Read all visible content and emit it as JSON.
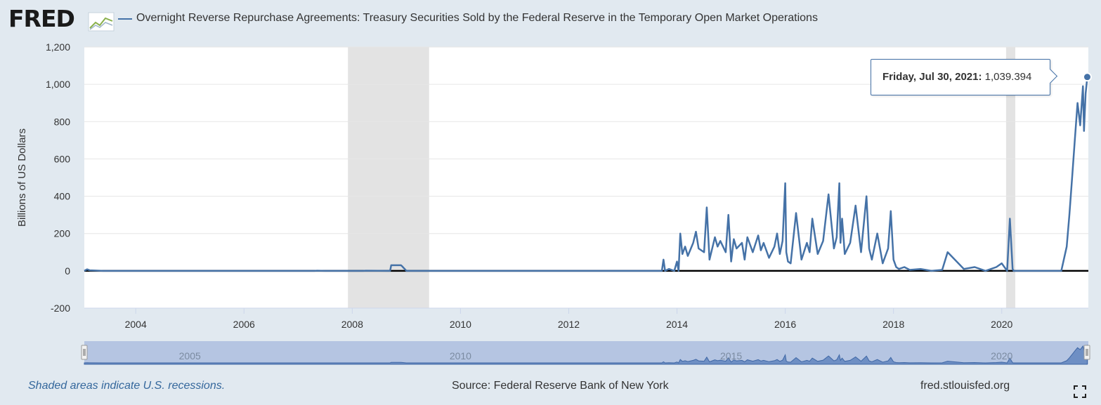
{
  "header": {
    "logo_text": "FRED",
    "series_title": "Overnight Reverse Repurchase Agreements: Treasury Securities Sold by the Federal Reserve in the Temporary Open Market Operations"
  },
  "tooltip": {
    "date": "Friday, Jul 30, 2021:",
    "value": "1,039.394"
  },
  "footer": {
    "recession_note": "Shaded areas indicate U.S. recessions.",
    "source": "Source: Federal Reserve Bank of New York",
    "site": "fred.stlouisfed.org"
  },
  "colors": {
    "series": "#4572a7",
    "recession": "#e3e3e3",
    "background": "#e1e9f0",
    "navigator": "#b5c5e2"
  },
  "icons": [
    "fullscreen-icon",
    "fred-logo-graph-icon"
  ],
  "chart_data": {
    "type": "line",
    "title": "Overnight Reverse Repurchase Agreements: Treasury Securities Sold by the Federal Reserve in the Temporary Open Market Operations",
    "xlabel": "",
    "ylabel": "Billions of US Dollars",
    "xlim": [
      2003.05,
      2021.6
    ],
    "ylim": [
      -200,
      1200
    ],
    "y_ticks": [
      -200,
      0,
      200,
      400,
      600,
      800,
      1000,
      1200
    ],
    "y_tick_labels": [
      "-200",
      "0",
      "200",
      "400",
      "600",
      "800",
      "1,000",
      "1,200"
    ],
    "x_ticks": [
      2004,
      2006,
      2008,
      2010,
      2012,
      2014,
      2016,
      2018,
      2020
    ],
    "x_tick_labels": [
      "2004",
      "2006",
      "2008",
      "2010",
      "2012",
      "2014",
      "2016",
      "2018",
      "2020"
    ],
    "grid": "horizontal",
    "recessions": [
      [
        2007.92,
        2009.42
      ],
      [
        2020.08,
        2020.25
      ]
    ],
    "navigator_labels": [
      "2005",
      "2010",
      "2015",
      "2020"
    ],
    "navigator_ticks": [
      2005,
      2010,
      2015,
      2020
    ],
    "series": [
      {
        "name": "Overnight Reverse Repurchase Agreements: Treasury Securities Sold by the Federal Reserve in the Temporary Open Market Operations",
        "x": [
          2003.05,
          2003.1,
          2003.15,
          2003.4,
          2003.5,
          2004.5,
          2005.5,
          2006.5,
          2007.3,
          2007.35,
          2007.5,
          2008.2,
          2008.25,
          2008.7,
          2008.72,
          2008.9,
          2008.92,
          2009.0,
          2009.5,
          2010.5,
          2011.5,
          2012.5,
          2013.5,
          2013.72,
          2013.75,
          2013.78,
          2013.85,
          2013.95,
          2014.0,
          2014.03,
          2014.06,
          2014.1,
          2014.15,
          2014.2,
          2014.3,
          2014.35,
          2014.4,
          2014.5,
          2014.55,
          2014.6,
          2014.7,
          2014.75,
          2014.8,
          2014.9,
          2014.95,
          2015.0,
          2015.05,
          2015.1,
          2015.2,
          2015.25,
          2015.3,
          2015.4,
          2015.5,
          2015.55,
          2015.6,
          2015.7,
          2015.8,
          2015.85,
          2015.9,
          2015.95,
          2016.0,
          2016.02,
          2016.05,
          2016.1,
          2016.2,
          2016.3,
          2016.4,
          2016.45,
          2016.5,
          2016.6,
          2016.7,
          2016.8,
          2016.9,
          2016.95,
          2017.0,
          2017.02,
          2017.05,
          2017.1,
          2017.2,
          2017.3,
          2017.4,
          2017.5,
          2017.55,
          2017.6,
          2017.7,
          2017.8,
          2017.9,
          2017.95,
          2018.0,
          2018.05,
          2018.1,
          2018.2,
          2018.3,
          2018.5,
          2018.7,
          2018.9,
          2019.0,
          2019.3,
          2019.5,
          2019.7,
          2019.9,
          2020.0,
          2020.1,
          2020.15,
          2020.2,
          2020.22,
          2020.25,
          2020.3,
          2020.5,
          2020.8,
          2021.0,
          2021.1,
          2021.2,
          2021.25,
          2021.3,
          2021.35,
          2021.4,
          2021.45,
          2021.5,
          2021.52,
          2021.55,
          2021.58
        ],
        "y": [
          0,
          8,
          3,
          0,
          0,
          0,
          0,
          0,
          0,
          1,
          0,
          0,
          1,
          0,
          30,
          30,
          25,
          0,
          0,
          0,
          0,
          0,
          0,
          0,
          60,
          0,
          10,
          0,
          50,
          0,
          200,
          90,
          130,
          80,
          150,
          210,
          120,
          100,
          340,
          60,
          180,
          130,
          160,
          100,
          300,
          50,
          170,
          120,
          150,
          60,
          180,
          100,
          190,
          110,
          150,
          70,
          130,
          200,
          90,
          160,
          470,
          100,
          50,
          40,
          310,
          60,
          150,
          100,
          280,
          90,
          160,
          410,
          120,
          180,
          470,
          150,
          280,
          90,
          150,
          350,
          100,
          400,
          120,
          60,
          200,
          40,
          120,
          320,
          60,
          20,
          10,
          20,
          5,
          10,
          0,
          5,
          100,
          10,
          20,
          0,
          20,
          40,
          0,
          280,
          10,
          0,
          0,
          0,
          0,
          0,
          0,
          0,
          130,
          300,
          500,
          700,
          900,
          780,
          990,
          750,
          950,
          1039.394
        ]
      }
    ],
    "annotation": {
      "x": 2021.58,
      "y": 1039.394,
      "label": "Friday, Jul 30, 2021: 1,039.394"
    }
  }
}
